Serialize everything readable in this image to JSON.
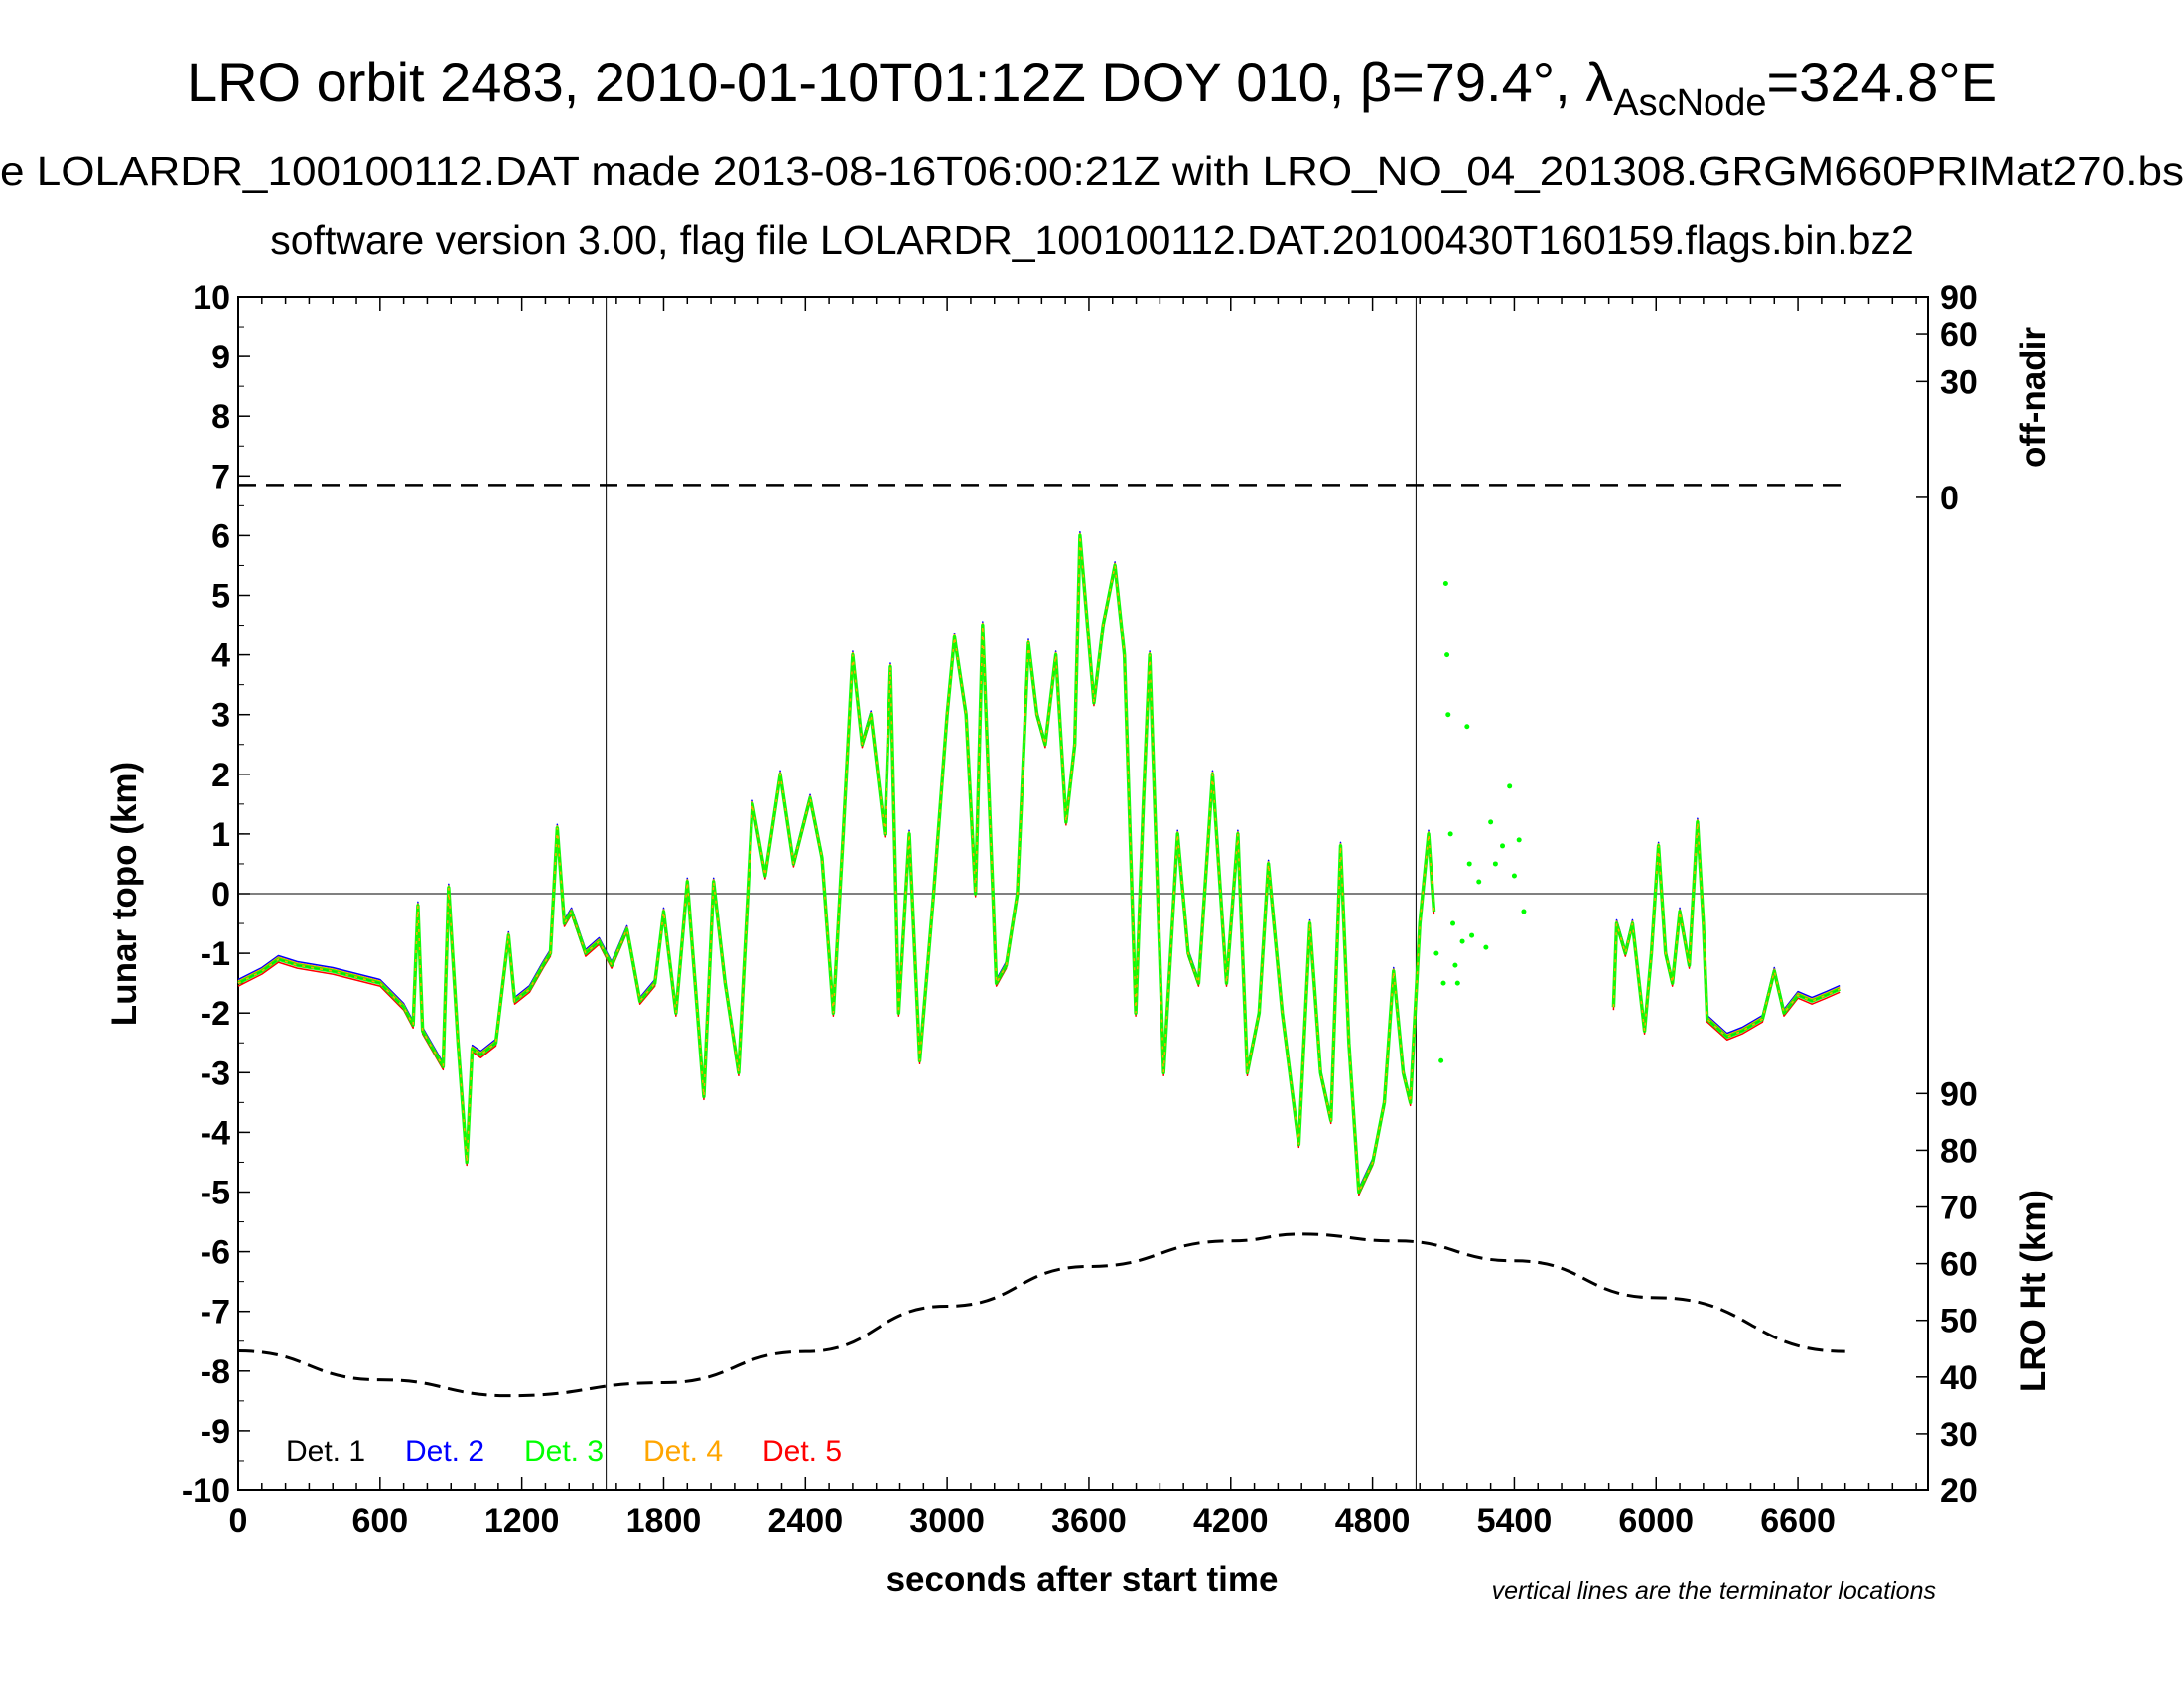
{
  "chart_data": {
    "type": "scatter",
    "title": "LRO orbit 2483, 2010-01-10T01:12Z DOY 010, β=79.4°, λ",
    "title_sub": "AscNode",
    "title_end": "=324.8°E",
    "subtitle1": "e LOLARDR_100100112.DAT made 2013-08-16T06:00:21Z with LRO_NO_04_201308.GRGM660PRIMat270.bs",
    "subtitle2": "software version 3.00, flag file LOLARDR_100100112.DAT.20100430T160159.flags.bin.bz2",
    "xlabel": "seconds after start time",
    "ylabel": "Lunar topo (km)",
    "y2label_top": "off-nadir",
    "y2label_bottom": "LRO Ht (km)",
    "note": "vertical lines are the terminator locations",
    "xlim": [
      0,
      7150
    ],
    "ylim": [
      -10,
      10
    ],
    "xticks": [
      "0",
      "600",
      "1200",
      "1800",
      "2400",
      "3000",
      "3600",
      "4200",
      "4800",
      "5400",
      "6000",
      "6600"
    ],
    "yticks": [
      "-10",
      "-9",
      "-8",
      "-7",
      "-6",
      "-5",
      "-4",
      "-3",
      "-2",
      "-1",
      "0",
      "1",
      "2",
      "3",
      "4",
      "5",
      "6",
      "7",
      "8",
      "9",
      "10"
    ],
    "offnadir_ticks": [
      "0",
      "30",
      "60",
      "90"
    ],
    "height_ticks": [
      "20",
      "30",
      "40",
      "50",
      "60",
      "70",
      "80",
      "90"
    ],
    "terminators": [
      1557,
      4984
    ],
    "legend": [
      {
        "label": "Det. 1",
        "color": "#000000"
      },
      {
        "label": "Det. 2",
        "color": "#0000ff"
      },
      {
        "label": "Det. 3",
        "color": "#00ff00"
      },
      {
        "label": "Det. 4",
        "color": "#ffa500"
      },
      {
        "label": "Det. 5",
        "color": "#ff0000"
      }
    ],
    "legend_position": "bottom-left",
    "topo_segments": [
      [
        [
          0,
          -1.5
        ],
        [
          100,
          -1.3
        ],
        [
          170,
          -1.1
        ],
        [
          250,
          -1.2
        ],
        [
          400,
          -1.3
        ],
        [
          600,
          -1.5
        ],
        [
          700,
          -1.9
        ],
        [
          740,
          -2.2
        ],
        [
          760,
          -0.2
        ],
        [
          780,
          -2.3
        ],
        [
          867,
          -2.9
        ],
        [
          890,
          0.1
        ],
        [
          930,
          -2.5
        ],
        [
          967,
          -4.5
        ],
        [
          990,
          -2.6
        ],
        [
          1026,
          -2.7
        ],
        [
          1090,
          -2.5
        ],
        [
          1144,
          -0.7
        ],
        [
          1170,
          -1.8
        ],
        [
          1233,
          -1.6
        ],
        [
          1290,
          -1.2
        ],
        [
          1321,
          -1.0
        ],
        [
          1350,
          1.1
        ],
        [
          1380,
          -0.5
        ],
        [
          1410,
          -0.3
        ],
        [
          1470,
          -1.0
        ],
        [
          1527,
          -0.8
        ],
        [
          1580,
          -1.2
        ],
        [
          1645,
          -0.6
        ],
        [
          1700,
          -1.8
        ],
        [
          1763,
          -1.5
        ],
        [
          1800,
          -0.3
        ],
        [
          1852,
          -2.0
        ],
        [
          1900,
          0.2
        ],
        [
          1970,
          -3.4
        ],
        [
          2011,
          0.2
        ],
        [
          2060,
          -1.5
        ],
        [
          2117,
          -3.0
        ],
        [
          2176,
          1.5
        ],
        [
          2230,
          0.3
        ],
        [
          2294,
          2.0
        ],
        [
          2350,
          0.5
        ],
        [
          2420,
          1.6
        ],
        [
          2470,
          0.6
        ],
        [
          2518,
          -2.0
        ],
        [
          2560,
          1.0
        ],
        [
          2600,
          4.0
        ],
        [
          2640,
          2.5
        ],
        [
          2677,
          3.0
        ],
        [
          2736,
          1.0
        ],
        [
          2760,
          3.8
        ],
        [
          2795,
          -2.0
        ],
        [
          2840,
          1.0
        ],
        [
          2884,
          -2.8
        ],
        [
          2943,
          0.0
        ],
        [
          3000,
          3.0
        ],
        [
          3031,
          4.3
        ],
        [
          3080,
          3.0
        ],
        [
          3120,
          0.0
        ],
        [
          3150,
          4.5
        ],
        [
          3208,
          -1.5
        ],
        [
          3250,
          -1.2
        ],
        [
          3297,
          0.0
        ],
        [
          3344,
          4.2
        ],
        [
          3380,
          3.0
        ],
        [
          3415,
          2.5
        ],
        [
          3460,
          4.0
        ],
        [
          3503,
          1.2
        ],
        [
          3540,
          2.5
        ],
        [
          3562,
          6.0
        ],
        [
          3621,
          3.2
        ],
        [
          3660,
          4.5
        ],
        [
          3710,
          5.5
        ],
        [
          3750,
          4.0
        ],
        [
          3798,
          -2.0
        ],
        [
          3830,
          1.5
        ],
        [
          3857,
          4.0
        ],
        [
          3916,
          -3.0
        ],
        [
          3975,
          1.0
        ],
        [
          4020,
          -1.0
        ],
        [
          4064,
          -1.5
        ],
        [
          4123,
          2.0
        ],
        [
          4182,
          -1.5
        ],
        [
          4230,
          1.0
        ],
        [
          4270,
          -3.0
        ],
        [
          4320,
          -2.0
        ],
        [
          4359,
          0.5
        ],
        [
          4418,
          -2.0
        ],
        [
          4488,
          -4.2
        ],
        [
          4535,
          -0.5
        ],
        [
          4580,
          -3.0
        ],
        [
          4624,
          -3.8
        ],
        [
          4665,
          0.8
        ],
        [
          4700,
          -2.5
        ],
        [
          4742,
          -5.0
        ],
        [
          4801,
          -4.5
        ],
        [
          4850,
          -3.5
        ],
        [
          4889,
          -1.3
        ],
        [
          4930,
          -3.0
        ],
        [
          4960,
          -3.5
        ],
        [
          5000,
          -0.5
        ],
        [
          5037,
          1.0
        ],
        [
          5060,
          -0.3
        ]
      ],
      [
        [
          5820,
          -1.9
        ],
        [
          5833,
          -0.5
        ],
        [
          5870,
          -1.0
        ],
        [
          5900,
          -0.5
        ],
        [
          5951,
          -2.3
        ],
        [
          5980,
          -1.0
        ],
        [
          6010,
          0.8
        ],
        [
          6040,
          -1.0
        ],
        [
          6069,
          -1.5
        ],
        [
          6100,
          -0.3
        ],
        [
          6140,
          -1.2
        ],
        [
          6175,
          1.2
        ],
        [
          6200,
          -0.5
        ],
        [
          6216,
          -2.1
        ],
        [
          6300,
          -2.4
        ],
        [
          6364,
          -2.3
        ],
        [
          6450,
          -2.1
        ],
        [
          6500,
          -1.3
        ],
        [
          6541,
          -2.0
        ],
        [
          6600,
          -1.7
        ],
        [
          6659,
          -1.8
        ],
        [
          6720,
          -1.7
        ],
        [
          6777,
          -1.6
        ]
      ]
    ],
    "topo_scatter": [
      [
        5070,
        -1.0
      ],
      [
        5090,
        -2.8
      ],
      [
        5100,
        -1.5
      ],
      [
        5110,
        5.2
      ],
      [
        5115,
        4.0
      ],
      [
        5120,
        3.0
      ],
      [
        5130,
        1.0
      ],
      [
        5140,
        -0.5
      ],
      [
        5150,
        -1.2
      ],
      [
        5160,
        -1.5
      ],
      [
        5180,
        -0.8
      ],
      [
        5200,
        2.8
      ],
      [
        5210,
        0.5
      ],
      [
        5220,
        -0.7
      ],
      [
        5250,
        0.2
      ],
      [
        5280,
        -0.9
      ],
      [
        5300,
        1.2
      ],
      [
        5320,
        0.5
      ],
      [
        5350,
        0.8
      ],
      [
        5380,
        1.8
      ],
      [
        5400,
        0.3
      ],
      [
        5420,
        0.9
      ],
      [
        5440,
        -0.3
      ]
    ],
    "offnadir_series": {
      "x": [
        0,
        700,
        6800
      ],
      "y": [
        0.35,
        0.35,
        0.35
      ]
    },
    "height_series": {
      "x": [
        0,
        600,
        1150,
        1800,
        2400,
        3000,
        3600,
        4200,
        4500,
        4900,
        5400,
        6000,
        6800
      ],
      "y": [
        44.6,
        39.5,
        36.7,
        39.0,
        44.5,
        52.5,
        59.5,
        64.0,
        65.2,
        64.0,
        60.5,
        54.0,
        44.5
      ]
    }
  }
}
